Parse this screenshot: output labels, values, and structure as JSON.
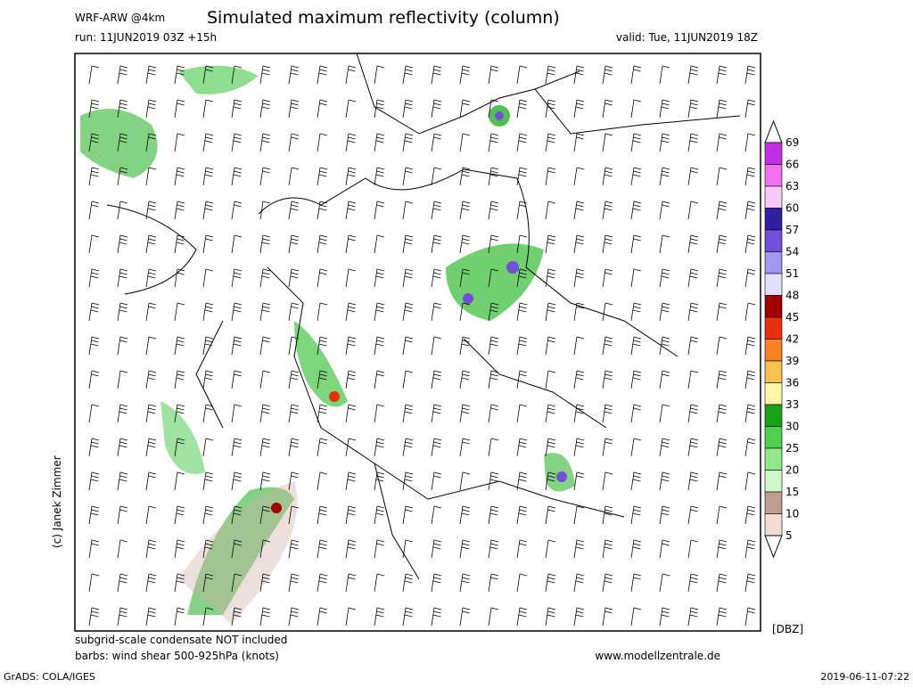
{
  "header": {
    "model": "WRF-ARW @4km",
    "title": "Simulated maximum reflectivity (column)",
    "run": "run: 11JUN2019 03Z +15h",
    "valid": "valid: Tue, 11JUN2019 18Z"
  },
  "credit": "(c) Janek Zimmer",
  "legend": {
    "unit": "[DBZ]",
    "labels": [
      69,
      66,
      63,
      60,
      57,
      54,
      51,
      48,
      45,
      42,
      39,
      36,
      33,
      30,
      25,
      20,
      15,
      10,
      5
    ],
    "colors": [
      "#c030e0",
      "#f070f0",
      "#f8c8f8",
      "#3020a0",
      "#7050d8",
      "#a098f0",
      "#e0e0fc",
      "#a00000",
      "#e83010",
      "#f88020",
      "#fac050",
      "#fff4a8",
      "#18a018",
      "#50d050",
      "#90e888",
      "#d0f8c8",
      "#c09c90",
      "#f0dcd4"
    ]
  },
  "footer": {
    "note1": "subgrid-scale condensate NOT included",
    "note2": "barbs: wind shear 500-925hPa (knots)",
    "site": "www.modellzentrale.de",
    "grads": "GrADS: COLA/IGES",
    "stamp": "2019-06-11-07:22"
  }
}
